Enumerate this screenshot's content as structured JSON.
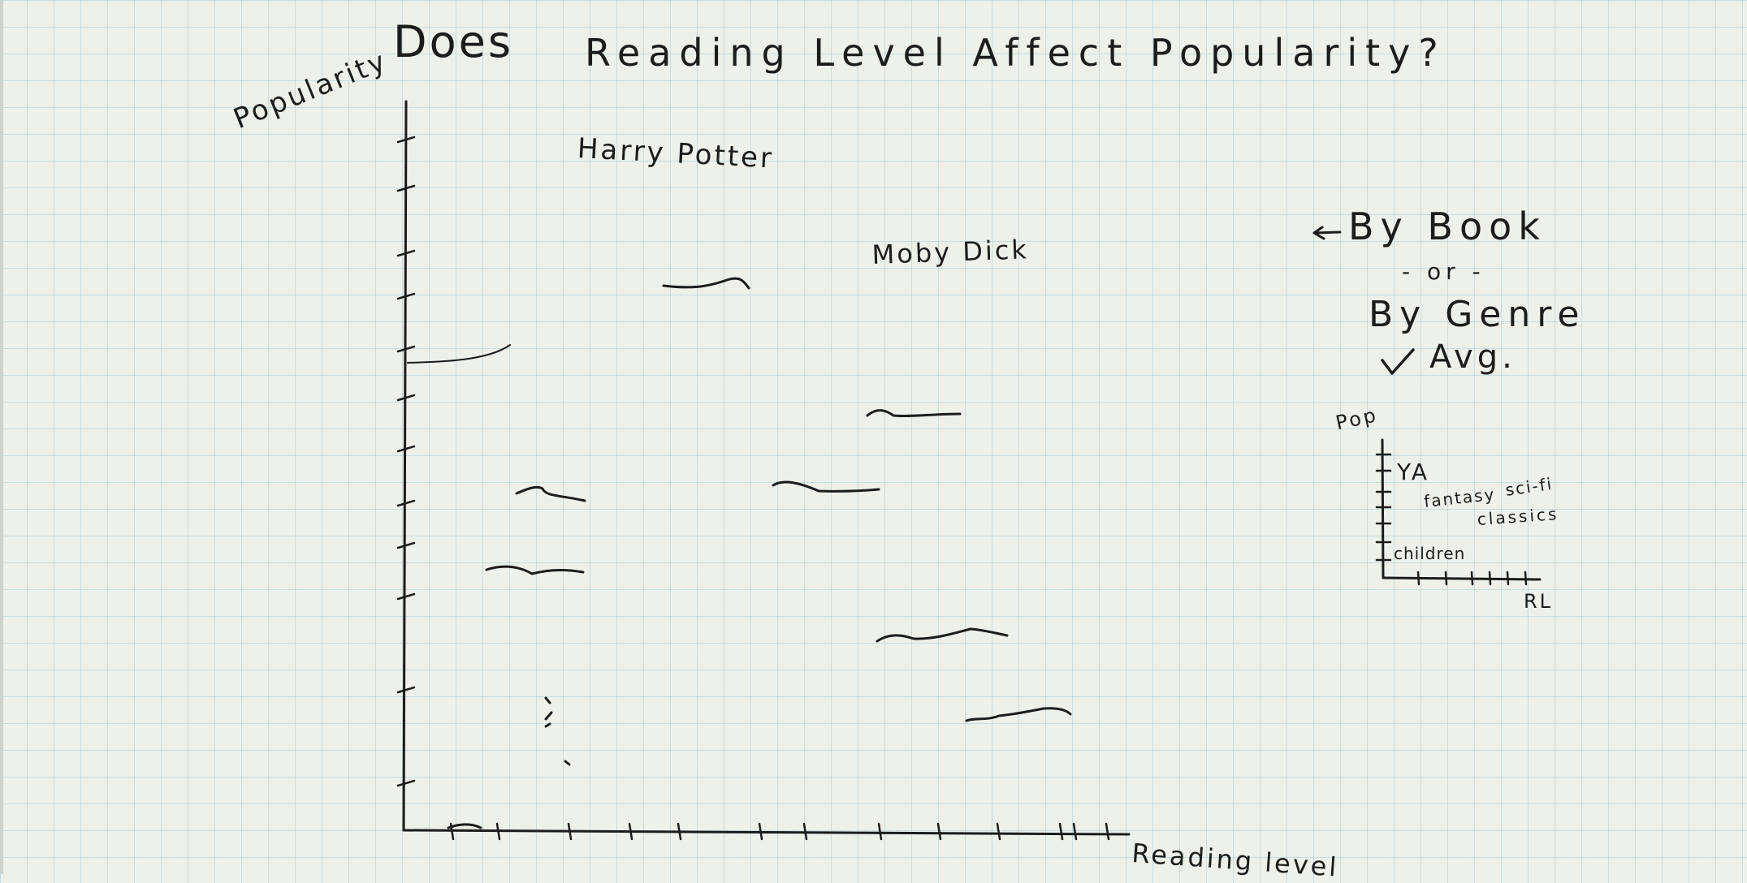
{
  "title": {
    "word1": "Does",
    "rest": "Reading Level Affect Popularity?"
  },
  "main_chart": {
    "ylabel": "Popularity",
    "xlabel": "Reading level",
    "annotations": [
      "Harry Potter",
      "Moby Dick"
    ],
    "y_ticks": 13,
    "x_ticks": 13,
    "marks": 9
  },
  "options": {
    "line1": "By Book",
    "line2": "- or -",
    "line3": "By Genre",
    "line4": "Avg."
  },
  "mini_chart": {
    "ylabel": "Pop",
    "xlabel": "RL",
    "labels": [
      "YA",
      "fantasy",
      "sci-fi",
      "classics",
      "children"
    ]
  }
}
